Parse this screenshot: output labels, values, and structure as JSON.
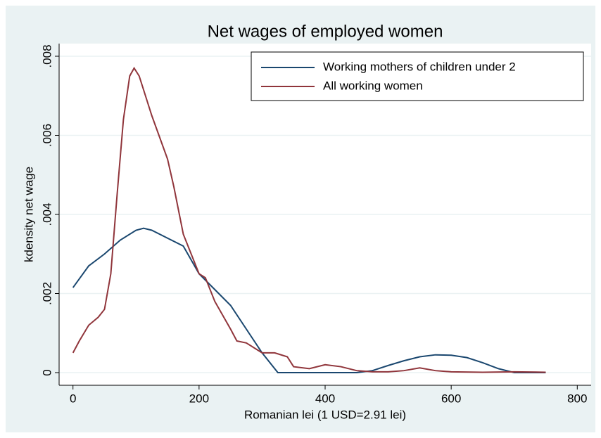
{
  "chart_data": {
    "type": "line",
    "title": "Net wages of employed women",
    "xlabel": "Romanian lei (1 USD=2.91 lei)",
    "ylabel": "kdensity net wage",
    "xlim": [
      -22,
      822
    ],
    "ylim": [
      -0.00032,
      0.00832
    ],
    "xticks": [
      0,
      200,
      400,
      600,
      800
    ],
    "yticks": [
      0,
      {
        "value": 0.002,
        "label": ".002"
      },
      {
        "value": 0.004,
        "label": ".004"
      },
      {
        "value": 0.006,
        "label": ".006"
      },
      {
        "value": 0.008,
        "label": ".008"
      }
    ],
    "grid": true,
    "legend": "top right",
    "series": [
      {
        "name": "Working mothers of children under 2",
        "color": "#1a476f",
        "x": [
          0,
          25,
          50,
          75,
          100,
          112,
          125,
          150,
          175,
          200,
          225,
          250,
          275,
          300,
          325,
          350,
          400,
          450,
          475,
          500,
          525,
          550,
          575,
          600,
          625,
          650,
          675,
          700,
          725,
          750
        ],
        "values": [
          0.00215,
          0.0027,
          0.003,
          0.00335,
          0.0036,
          0.00365,
          0.0036,
          0.0034,
          0.0032,
          0.0025,
          0.0021,
          0.0017,
          0.0011,
          0.0005,
          0,
          0,
          0,
          0,
          5e-05,
          0.00018,
          0.0003,
          0.0004,
          0.00045,
          0.00044,
          0.00038,
          0.00025,
          0.0001,
          0,
          0,
          0
        ]
      },
      {
        "name": "All working women",
        "color": "#90353b",
        "x": [
          0,
          10,
          25,
          40,
          50,
          60,
          70,
          80,
          90,
          97,
          105,
          115,
          125,
          150,
          160,
          175,
          200,
          210,
          225,
          250,
          260,
          275,
          290,
          300,
          320,
          340,
          350,
          375,
          400,
          425,
          450,
          475,
          500,
          525,
          550,
          575,
          600,
          650,
          700,
          750
        ],
        "values": [
          0.0005,
          0.0008,
          0.0012,
          0.0014,
          0.0016,
          0.0025,
          0.0045,
          0.0064,
          0.0075,
          0.0077,
          0.0075,
          0.007,
          0.0065,
          0.0054,
          0.0047,
          0.0035,
          0.0025,
          0.0024,
          0.0018,
          0.0011,
          0.0008,
          0.00075,
          0.0006,
          0.0005,
          0.0005,
          0.0004,
          0.00015,
          0.0001,
          0.0002,
          0.00015,
          5e-05,
          2e-05,
          2e-05,
          5e-05,
          0.00012,
          5e-05,
          2e-05,
          1e-05,
          2e-05,
          1e-05
        ]
      }
    ]
  }
}
